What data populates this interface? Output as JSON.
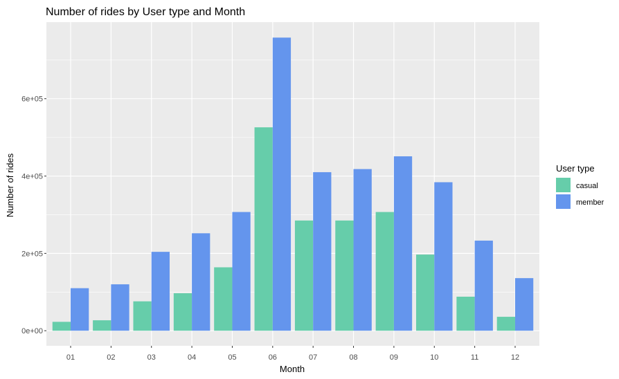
{
  "chart_data": {
    "type": "bar",
    "title": "Number of rides by User type and Month",
    "xlabel": "Month",
    "ylabel": "Number of rides",
    "categories": [
      "01",
      "02",
      "03",
      "04",
      "05",
      "06",
      "07",
      "08",
      "09",
      "10",
      "11",
      "12"
    ],
    "series": [
      {
        "name": "casual",
        "color": "#66cdaa",
        "values": [
          23000,
          27000,
          76000,
          97000,
          164000,
          526000,
          285000,
          285000,
          307000,
          197000,
          88000,
          36000
        ]
      },
      {
        "name": "member",
        "color": "#6495ed",
        "values": [
          110000,
          120000,
          204000,
          252000,
          307000,
          758000,
          410000,
          418000,
          451000,
          384000,
          233000,
          136000
        ]
      }
    ],
    "yticks": [
      0,
      200000,
      400000,
      600000
    ],
    "ytick_labels": [
      "0e+00",
      "2e+05",
      "4e+05",
      "6e+05"
    ],
    "ylim": [
      -39000,
      798000
    ],
    "legend_title": "User type",
    "legend_position": "right",
    "grid": true,
    "panel_color": "#ebebeb",
    "grid_color": "#ffffff"
  }
}
